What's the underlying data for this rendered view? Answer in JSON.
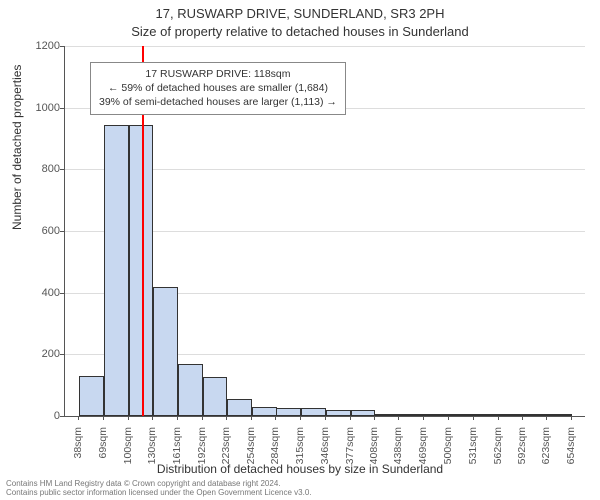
{
  "title_line1": "17, RUSWARP DRIVE, SUNDERLAND, SR3 2PH",
  "title_line2": "Size of property relative to detached houses in Sunderland",
  "ylabel": "Number of detached properties",
  "xlabel": "Distribution of detached houses by size in Sunderland",
  "footer_line1": "Contains HM Land Registry data © Crown copyright and database right 2024.",
  "footer_line2": "Contains public sector information licensed under the Open Government Licence v3.0.",
  "chart": {
    "type": "histogram",
    "ylim": [
      0,
      1200
    ],
    "ytick_step": 200,
    "yticks": [
      0,
      200,
      400,
      600,
      800,
      1000,
      1200
    ],
    "background_color": "#ffffff",
    "grid_color": "#dddddd",
    "axis_color": "#555555",
    "bar_fill": "#c8d8f0",
    "bar_border": "#333333",
    "vline_color": "#ff0000",
    "vline_x_sqm": 118,
    "categories": [
      "38sqm",
      "69sqm",
      "100sqm",
      "130sqm",
      "161sqm",
      "192sqm",
      "223sqm",
      "254sqm",
      "284sqm",
      "315sqm",
      "346sqm",
      "377sqm",
      "408sqm",
      "438sqm",
      "469sqm",
      "500sqm",
      "531sqm",
      "562sqm",
      "592sqm",
      "623sqm",
      "654sqm"
    ],
    "x_values_sqm": [
      38,
      69,
      100,
      130,
      161,
      192,
      223,
      254,
      284,
      315,
      346,
      377,
      408,
      438,
      469,
      500,
      531,
      562,
      592,
      623,
      654
    ],
    "bars": [
      {
        "x_sqm": 53.5,
        "value": 130
      },
      {
        "x_sqm": 84.5,
        "value": 945
      },
      {
        "x_sqm": 115,
        "value": 945
      },
      {
        "x_sqm": 145.5,
        "value": 420
      },
      {
        "x_sqm": 176.5,
        "value": 170
      },
      {
        "x_sqm": 207.5,
        "value": 125
      },
      {
        "x_sqm": 238.5,
        "value": 55
      },
      {
        "x_sqm": 269,
        "value": 30
      },
      {
        "x_sqm": 299.5,
        "value": 25
      },
      {
        "x_sqm": 330.5,
        "value": 25
      },
      {
        "x_sqm": 361.5,
        "value": 20
      },
      {
        "x_sqm": 392.5,
        "value": 18
      },
      {
        "x_sqm": 423,
        "value": 6
      },
      {
        "x_sqm": 453.5,
        "value": 4
      },
      {
        "x_sqm": 484.5,
        "value": 4
      },
      {
        "x_sqm": 515.5,
        "value": 3
      },
      {
        "x_sqm": 546.5,
        "value": 2
      },
      {
        "x_sqm": 577,
        "value": 2
      },
      {
        "x_sqm": 607.5,
        "value": 2
      },
      {
        "x_sqm": 638.5,
        "value": 2
      }
    ],
    "x_domain": [
      20,
      670
    ],
    "bar_width_sqm": 31,
    "title_fontsize": 13,
    "label_fontsize": 12,
    "tick_fontsize": 11
  },
  "info_box": {
    "line1": "17 RUSWARP DRIVE: 118sqm",
    "line2": "← 59% of detached houses are smaller (1,684)",
    "line3": "39% of semi-detached houses are larger (1,113) →",
    "border_color": "#888888",
    "background_color": "#ffffff",
    "fontsize": 10.5
  }
}
